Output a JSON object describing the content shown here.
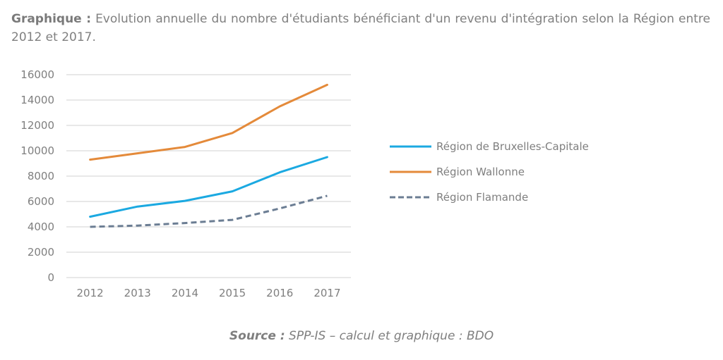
{
  "caption": {
    "label": "Graphique :",
    "text": "Evolution annuelle du nombre d'étudiants bénéficiant d'un revenu d'intégration selon la Région entre 2012 et 2017."
  },
  "source": {
    "label": "Source :",
    "text": "SPP-IS – calcul et graphique : BDO"
  },
  "chart_data": {
    "type": "line",
    "title": "Evolution annuelle du nombre d'étudiants bénéficiant d'un revenu d'intégration selon la Région entre 2012 et 2017.",
    "xlabel": "",
    "ylabel": "",
    "x": [
      "2012",
      "2013",
      "2014",
      "2015",
      "2016",
      "2017"
    ],
    "ylim": [
      0,
      16000
    ],
    "yticks": [
      0,
      2000,
      4000,
      6000,
      8000,
      10000,
      12000,
      14000,
      16000
    ],
    "grid": true,
    "legend_position": "right",
    "series": [
      {
        "name": "Région de Bruxelles-Capitale",
        "color": "#1ba9e1",
        "dash": "solid",
        "values": [
          4800,
          5600,
          6050,
          6800,
          8300,
          9500
        ]
      },
      {
        "name": "Région Wallonne",
        "color": "#e48a3a",
        "dash": "solid",
        "values": [
          9300,
          9800,
          10300,
          11400,
          13500,
          15200
        ]
      },
      {
        "name": "Région Flamande",
        "color": "#6b7d93",
        "dash": "dashed",
        "values": [
          4000,
          4100,
          4300,
          4550,
          5450,
          6450
        ]
      }
    ]
  }
}
